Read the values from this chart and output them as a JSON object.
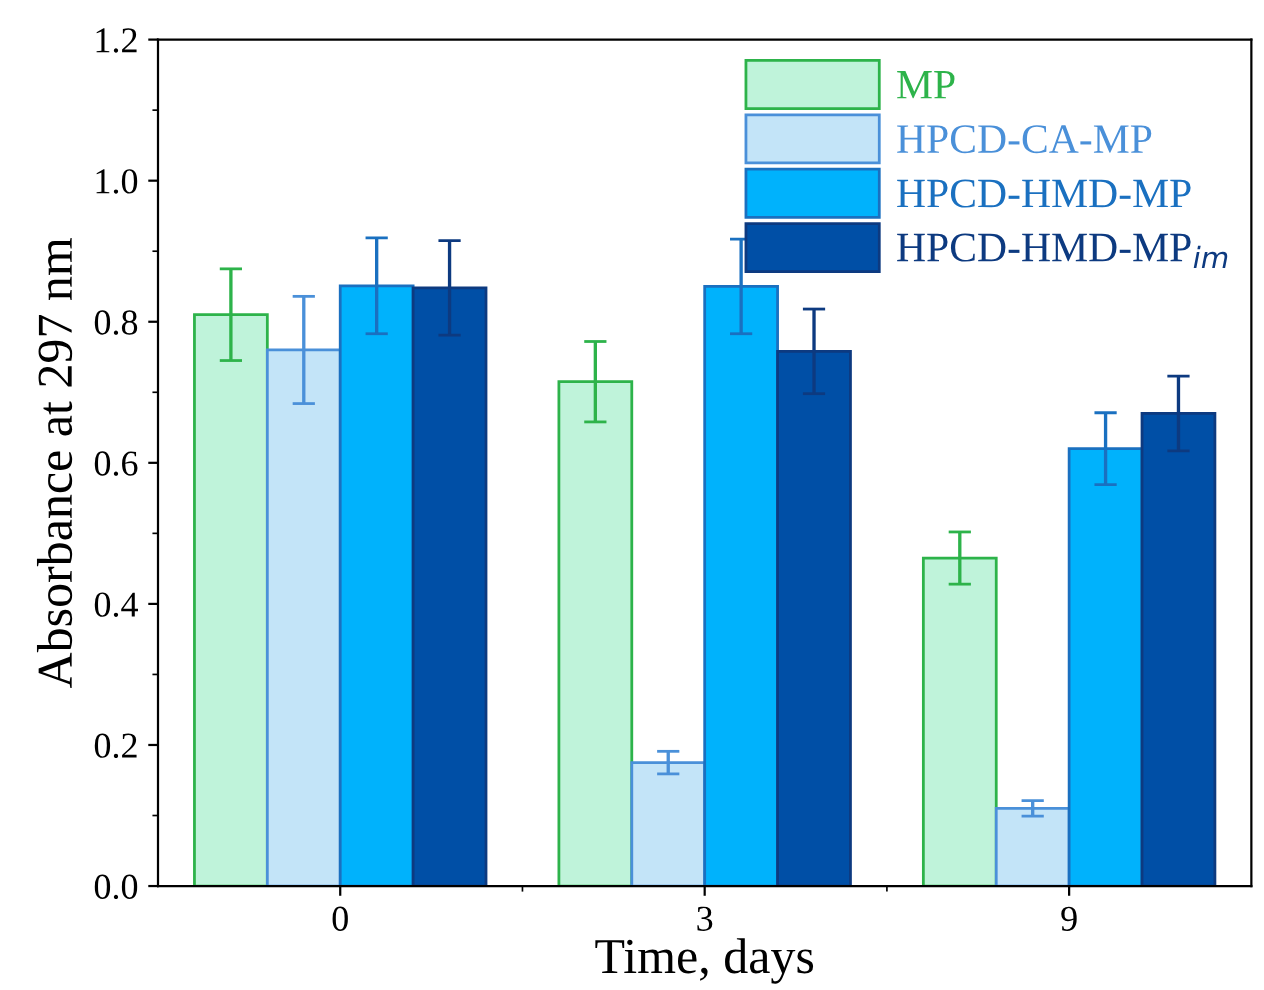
{
  "chart_data": {
    "type": "bar",
    "xlabel": "Time, days",
    "ylabel": "Absorbance at 297 nm",
    "categories": [
      "0",
      "3",
      "9"
    ],
    "series": [
      {
        "name": "MP",
        "color": "#bff3da",
        "values": [
          0.81,
          0.715,
          0.465
        ],
        "errors": [
          0.065,
          0.057,
          0.037
        ]
      },
      {
        "name": "HPCD-CA-MP",
        "color": "#c3e4f8",
        "values": [
          0.76,
          0.175,
          0.11
        ],
        "errors": [
          0.076,
          0.016,
          0.011
        ]
      },
      {
        "name": "HPCD-HMD-MP",
        "color": "#00b2fc",
        "values": [
          0.851,
          0.85,
          0.62
        ],
        "errors": [
          0.068,
          0.067,
          0.051
        ]
      },
      {
        "name": "HPCD-HMD-MP$_{im}$",
        "color": "#004fa6",
        "values": [
          0.848,
          0.758,
          0.67
        ],
        "errors": [
          0.067,
          0.06,
          0.053
        ]
      }
    ],
    "ylim": [
      0,
      1.2
    ],
    "yticks": [
      {
        "value": 0,
        "label": "0.0"
      },
      0.2,
      0.4,
      0.6,
      0.8,
      {
        "value": 1,
        "label": "1.0"
      },
      1.2
    ],
    "grid": false,
    "legend": "top right"
  }
}
